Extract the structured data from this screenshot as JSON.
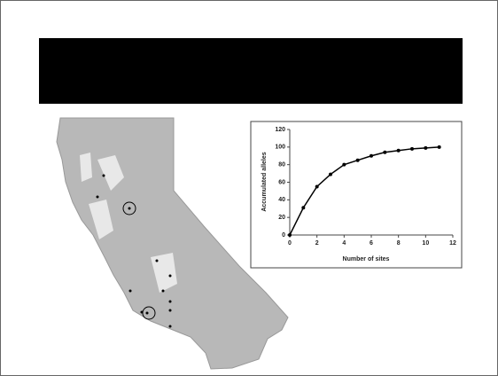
{
  "chart_data": {
    "type": "line",
    "xlabel": "Number of sites",
    "ylabel": "Accumulated alleles",
    "x": [
      0,
      1,
      2,
      3,
      4,
      5,
      6,
      7,
      8,
      9,
      10,
      11
    ],
    "values": [
      0,
      31,
      55,
      69,
      80,
      85,
      90,
      94,
      96,
      98,
      99,
      100
    ],
    "color": "#000000",
    "xlim": [
      0,
      12
    ],
    "xticks": [
      0,
      2,
      4,
      6,
      8,
      10,
      12
    ],
    "ylim": [
      0,
      120
    ],
    "yticks": [
      0,
      20,
      40,
      60,
      80,
      100,
      120
    ]
  }
}
